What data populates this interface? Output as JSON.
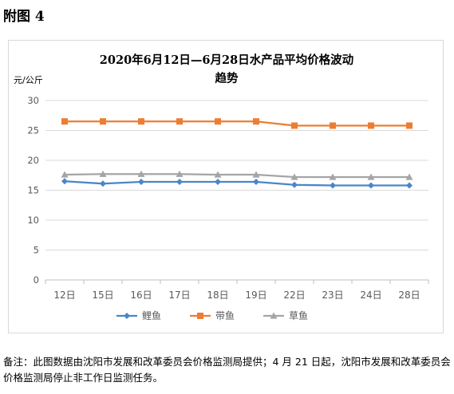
{
  "page": {
    "heading": "附图 4",
    "footnote": "备注：此图数据由沈阳市发展和改革委员会价格监测局提供；4 月 21 日起，沈阳市发展和改革委员会价格监测局停止非工作日监测任务。"
  },
  "chart_data": {
    "type": "line",
    "title_line1": "2020年6月12日—6月28日水产品平均价格波动",
    "title_line2": "趋势",
    "unit_label": "元/公斤",
    "categories": [
      "12日",
      "15日",
      "16日",
      "17日",
      "18日",
      "19日",
      "22日",
      "23日",
      "24日",
      "28日"
    ],
    "ylim": [
      0,
      30
    ],
    "yticks": [
      0,
      5,
      10,
      15,
      20,
      25,
      30
    ],
    "grid": true,
    "legend_position": "bottom",
    "series": [
      {
        "name": "鲤鱼",
        "color": "#4a86c8",
        "marker": "diamond",
        "values": [
          16.5,
          16.1,
          16.4,
          16.4,
          16.4,
          16.4,
          15.9,
          15.8,
          15.8,
          15.8
        ]
      },
      {
        "name": "带鱼",
        "color": "#ed7d31",
        "marker": "square",
        "values": [
          26.5,
          26.5,
          26.5,
          26.5,
          26.5,
          26.5,
          25.8,
          25.8,
          25.8,
          25.8
        ]
      },
      {
        "name": "草鱼",
        "color": "#a5a5a5",
        "marker": "triangle",
        "values": [
          17.6,
          17.7,
          17.7,
          17.7,
          17.6,
          17.6,
          17.2,
          17.2,
          17.2,
          17.2
        ]
      }
    ]
  }
}
